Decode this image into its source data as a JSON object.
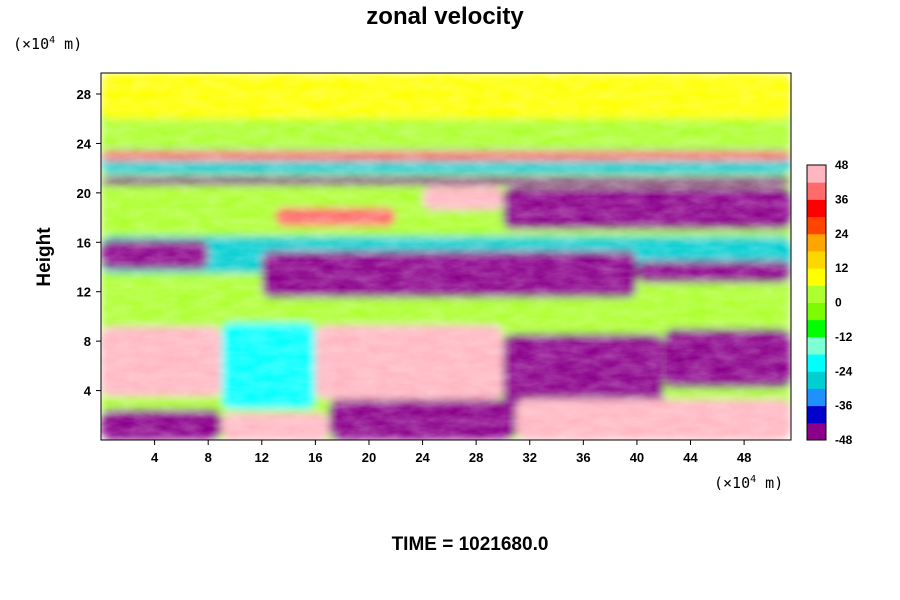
{
  "chart_data": {
    "type": "heatmap",
    "title": "zonal velocity",
    "xlabel": "",
    "ylabel": "Height",
    "x_unit": {
      "base": "(×10",
      "exp": "4",
      "tail": " m)"
    },
    "y_unit": {
      "base": "(×10",
      "exp": "4",
      "tail": " m)"
    },
    "xlim": [
      0,
      51.5
    ],
    "ylim": [
      0,
      29.7
    ],
    "x_ticks": [
      4,
      8,
      12,
      16,
      20,
      24,
      28,
      32,
      36,
      40,
      44,
      48
    ],
    "y_ticks": [
      4,
      8,
      12,
      16,
      20,
      24,
      28
    ],
    "colorbar": {
      "ticks": [
        48,
        36,
        24,
        12,
        0,
        -12,
        -24,
        -36,
        -48
      ],
      "range": [
        -48,
        48
      ],
      "colors": [
        "#8b008b",
        "#0000cd",
        "#1e90ff",
        "#00ced1",
        "#00ffff",
        "#7fffd4",
        "#00ff00",
        "#7cfc00",
        "#adff2f",
        "#ffff00",
        "#ffd700",
        "#ffa500",
        "#ff4500",
        "#ff0000",
        "#ff6b6b",
        "#ffb6c1"
      ]
    },
    "z_regions": [
      {
        "x": [
          0,
          51.5
        ],
        "y": [
          0,
          29.7
        ],
        "value": 2
      },
      {
        "x": [
          0,
          51.5
        ],
        "y": [
          26,
          29.7
        ],
        "value": 6
      },
      {
        "x": [
          0,
          51.5
        ],
        "y": [
          21.5,
          23.5
        ],
        "value": -30
      },
      {
        "x": [
          0,
          51.5
        ],
        "y": [
          22.6,
          23.4
        ],
        "value": 40
      },
      {
        "x": [
          0,
          51.5
        ],
        "y": [
          20.6,
          21.3
        ],
        "value": -44
      },
      {
        "x": [
          30,
          51.5
        ],
        "y": [
          17,
          20.5
        ],
        "value": -48
      },
      {
        "x": [
          24,
          30
        ],
        "y": [
          18.6,
          20.5
        ],
        "value": 48
      },
      {
        "x": [
          13,
          22
        ],
        "y": [
          17.3,
          18.8
        ],
        "value": 40
      },
      {
        "x": [
          0,
          51.5
        ],
        "y": [
          13.5,
          16.5
        ],
        "value": -30
      },
      {
        "x": [
          12,
          40
        ],
        "y": [
          11.5,
          15.3
        ],
        "value": -48
      },
      {
        "x": [
          0,
          8
        ],
        "y": [
          13.8,
          16.2
        ],
        "value": -48
      },
      {
        "x": [
          40,
          51.5
        ],
        "y": [
          12.7,
          14.5
        ],
        "value": -48
      },
      {
        "x": [
          0,
          9
        ],
        "y": [
          3.5,
          9.2
        ],
        "value": 48
      },
      {
        "x": [
          16,
          30
        ],
        "y": [
          3.3,
          9.3
        ],
        "value": 48
      },
      {
        "x": [
          9,
          16
        ],
        "y": [
          2.5,
          9.5
        ],
        "value": -20
      },
      {
        "x": [
          30,
          42
        ],
        "y": [
          2.5,
          8.6
        ],
        "value": -48
      },
      {
        "x": [
          42,
          51.5
        ],
        "y": [
          4.2,
          9.0
        ],
        "value": -48
      },
      {
        "x": [
          0,
          9
        ],
        "y": [
          0,
          2.5
        ],
        "value": -48
      },
      {
        "x": [
          9,
          17
        ],
        "y": [
          0,
          2.2
        ],
        "value": 48
      },
      {
        "x": [
          17,
          31
        ],
        "y": [
          0,
          3.3
        ],
        "value": -48
      },
      {
        "x": [
          31,
          51.5
        ],
        "y": [
          0,
          3.3
        ],
        "value": 48
      }
    ]
  },
  "footer": {
    "time_label": "TIME = 1021680.0"
  }
}
